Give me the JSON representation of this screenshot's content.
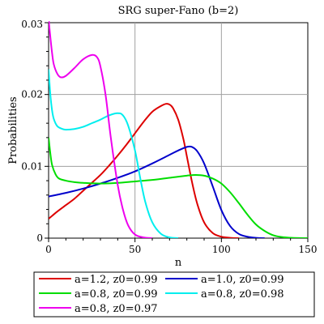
{
  "chart_data": {
    "type": "line",
    "title": "SRG super-Fano (b=2)",
    "xlabel": "n",
    "ylabel": "Probabilities",
    "xlim": [
      0,
      150
    ],
    "ylim": [
      0,
      0.03
    ],
    "x_ticks": [
      "0",
      "50",
      "100",
      "150"
    ],
    "y_ticks": [
      "0",
      "0.01",
      "0.02",
      "0.03"
    ],
    "grid": true,
    "legend_position": "bottom",
    "series": [
      {
        "name": "a=1.2, z0=0.99",
        "color": "#dd0000",
        "x": [
          0,
          2,
          5,
          10,
          15,
          20,
          25,
          30,
          35,
          40,
          45,
          50,
          55,
          60,
          65,
          68,
          70,
          72,
          75,
          78,
          80,
          83,
          86,
          90,
          95,
          100,
          105,
          110
        ],
        "y": [
          0.0027,
          0.0031,
          0.0037,
          0.0046,
          0.0055,
          0.0066,
          0.0077,
          0.0088,
          0.0101,
          0.0115,
          0.013,
          0.0146,
          0.0162,
          0.0176,
          0.0184,
          0.0187,
          0.0186,
          0.0181,
          0.0165,
          0.0138,
          0.0114,
          0.0078,
          0.0048,
          0.0022,
          0.0007,
          0.0002,
          5e-05,
          0.0
        ]
      },
      {
        "name": "a=1.0, z0=0.99",
        "color": "#0000cc",
        "x": [
          0,
          10,
          20,
          30,
          40,
          50,
          60,
          70,
          75,
          80,
          83,
          86,
          90,
          95,
          100,
          105,
          110,
          115,
          120,
          125
        ],
        "y": [
          0.0058,
          0.0063,
          0.0069,
          0.0076,
          0.0084,
          0.0093,
          0.0104,
          0.0116,
          0.0122,
          0.0127,
          0.0127,
          0.0121,
          0.0104,
          0.0072,
          0.0039,
          0.0017,
          0.0006,
          0.0002,
          5e-05,
          0.0
        ]
      },
      {
        "name": "a=0.8, z0=0.99",
        "color": "#00dd00",
        "x": [
          0,
          1,
          2,
          4,
          6,
          10,
          15,
          20,
          30,
          40,
          50,
          60,
          70,
          80,
          85,
          90,
          95,
          100,
          105,
          110,
          115,
          120,
          125,
          130,
          135,
          140,
          145,
          150
        ],
        "y": [
          0.014,
          0.0118,
          0.0102,
          0.0089,
          0.0083,
          0.008,
          0.0078,
          0.0077,
          0.0076,
          0.0077,
          0.0079,
          0.0081,
          0.0084,
          0.0087,
          0.0088,
          0.0087,
          0.0083,
          0.0076,
          0.0064,
          0.0049,
          0.0033,
          0.0019,
          0.001,
          0.0004,
          0.00015,
          5e-05,
          1e-05,
          0.0
        ]
      },
      {
        "name": "a=0.8, z0=0.98",
        "color": "#00eeee",
        "x": [
          0,
          1,
          2,
          3,
          5,
          8,
          10,
          15,
          20,
          25,
          30,
          35,
          40,
          43,
          46,
          50,
          53,
          56,
          60,
          65,
          70,
          75
        ],
        "y": [
          0.0235,
          0.02,
          0.0178,
          0.0166,
          0.0156,
          0.0152,
          0.0151,
          0.0152,
          0.0155,
          0.016,
          0.0165,
          0.0171,
          0.0174,
          0.0171,
          0.0157,
          0.0122,
          0.0084,
          0.005,
          0.0022,
          0.0006,
          0.0001,
          0.0
        ]
      },
      {
        "name": "a=0.8, z0=0.97",
        "color": "#ee00ee",
        "x": [
          0,
          1,
          2,
          3,
          5,
          7,
          10,
          15,
          20,
          25,
          28,
          30,
          33,
          36,
          40,
          43,
          46,
          50,
          55,
          60
        ],
        "y": [
          0.0305,
          0.028,
          0.0258,
          0.0242,
          0.0229,
          0.0224,
          0.0226,
          0.0237,
          0.0249,
          0.0255,
          0.0252,
          0.0239,
          0.0199,
          0.014,
          0.0074,
          0.004,
          0.0018,
          0.0005,
          0.0001,
          0.0
        ]
      }
    ]
  }
}
